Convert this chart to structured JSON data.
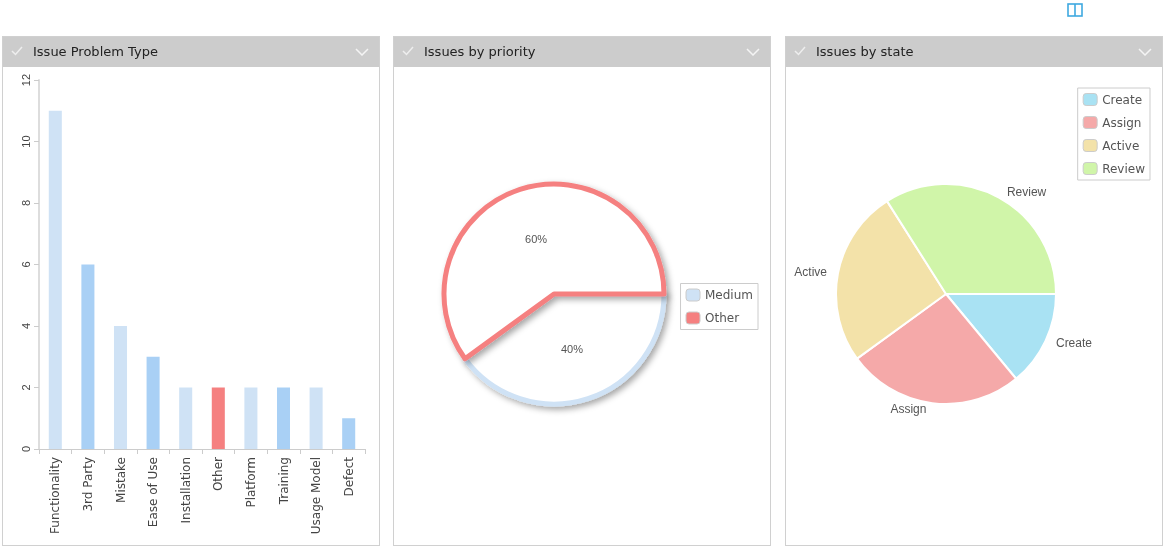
{
  "chart_data": [
    {
      "type": "bar",
      "title": "Issue Problem Type",
      "categories": [
        "Functionality",
        "3rd Party",
        "Mistake",
        "Ease of Use",
        "Installation",
        "Other",
        "Platform",
        "Training",
        "Usage Model",
        "Defect"
      ],
      "values": [
        11,
        6,
        4,
        3,
        2,
        2,
        2,
        2,
        2,
        1
      ],
      "colors": [
        "#cfe2f5",
        "#a9d0f5",
        "#cfe2f5",
        "#a9d0f5",
        "#cfe2f5",
        "#f58080",
        "#cfe2f5",
        "#a9d0f5",
        "#cfe2f5",
        "#a9d0f5"
      ],
      "ylim": [
        0,
        12
      ],
      "yticks": [
        0,
        2,
        4,
        6,
        8,
        10,
        12
      ],
      "grid": false,
      "legend": false
    },
    {
      "type": "pie",
      "title": "Issues by priority",
      "categories": [
        "Medium",
        "Other"
      ],
      "values": [
        40,
        60
      ],
      "value_labels": [
        "40%",
        "60%"
      ],
      "colors": [
        "#cfe2f5",
        "#f58080"
      ],
      "legend": "right"
    },
    {
      "type": "pie",
      "title": "Issues by state",
      "categories": [
        "Create",
        "Assign",
        "Active",
        "Review"
      ],
      "values": [
        14,
        26,
        26,
        34
      ],
      "colors": [
        "#a9e2f3",
        "#f5a9a9",
        "#f3e2a9",
        "#d0f5a9"
      ],
      "legend": "top right"
    }
  ]
}
